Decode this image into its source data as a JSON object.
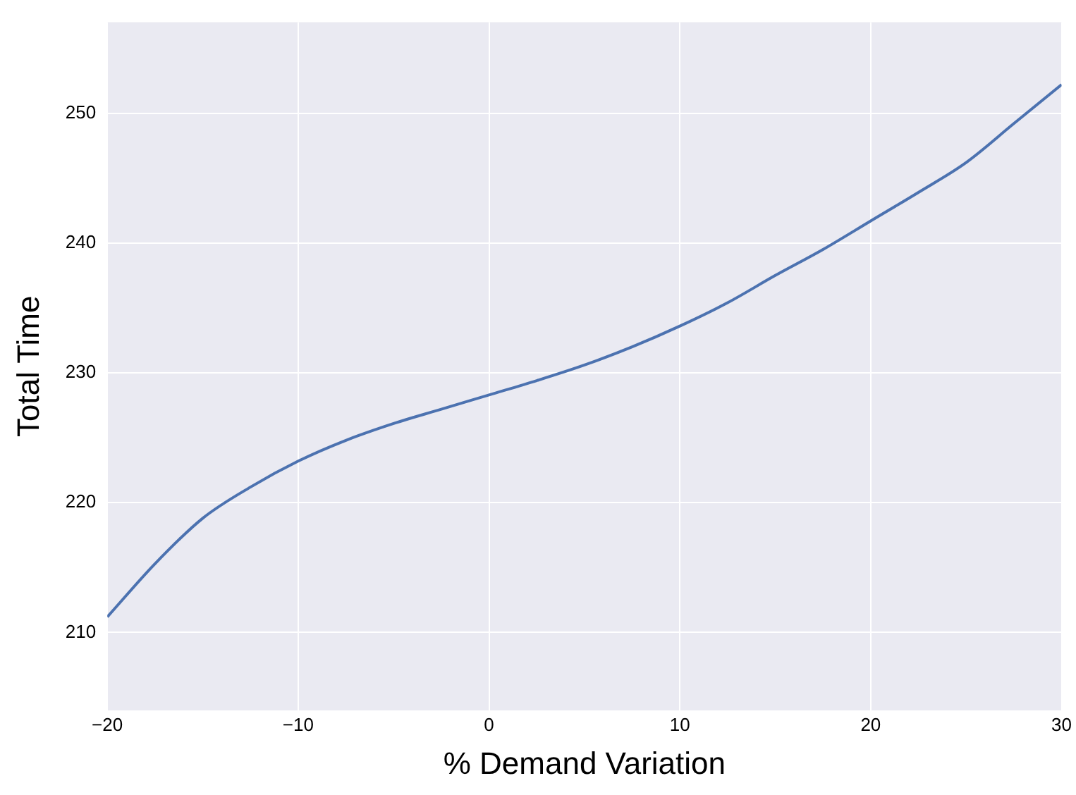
{
  "chart_data": {
    "type": "line",
    "xlabel": "% Demand Variation",
    "ylabel": "Total Time",
    "x": [
      -20,
      -17.5,
      -15,
      -12.5,
      -10,
      -7.5,
      -5,
      -2.5,
      0,
      2.5,
      5,
      7.5,
      10,
      12.5,
      15,
      17.5,
      20,
      22.5,
      25,
      27.5,
      30
    ],
    "series": [
      {
        "color": "#4c72b0",
        "values": [
          211.2,
          215.3,
          218.8,
          221.2,
          223.2,
          224.8,
          226.1,
          227.2,
          228.3,
          229.4,
          230.6,
          232,
          233.6,
          235.4,
          237.5,
          239.5,
          241.7,
          243.9,
          246.2,
          249.2,
          252.2
        ]
      }
    ],
    "xlim": [
      -20,
      30
    ],
    "xticks": [
      -20,
      -10,
      0,
      10,
      20,
      30
    ],
    "ylim": [
      204,
      257
    ],
    "yticks": [
      210,
      220,
      230,
      240,
      250
    ],
    "grid": true,
    "legend": false,
    "marker": "none",
    "line_style": "solid"
  }
}
